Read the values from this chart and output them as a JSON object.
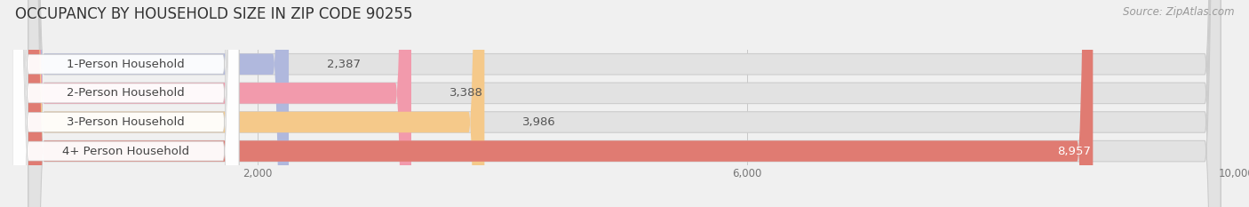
{
  "title": "OCCUPANCY BY HOUSEHOLD SIZE IN ZIP CODE 90255",
  "source": "Source: ZipAtlas.com",
  "categories": [
    "1-Person Household",
    "2-Person Household",
    "3-Person Household",
    "4+ Person Household"
  ],
  "values": [
    2387,
    3388,
    3986,
    8957
  ],
  "bar_colors": [
    "#b0b8dd",
    "#f29aac",
    "#f5c98a",
    "#e07b72"
  ],
  "value_label_colors": [
    "#555555",
    "#555555",
    "#555555",
    "#ffffff"
  ],
  "xlim": [
    0,
    10000
  ],
  "xticks": [
    2000,
    6000,
    10000
  ],
  "background_color": "#f0f0f0",
  "bar_background_color": "#e2e2e2",
  "title_fontsize": 12,
  "source_fontsize": 8.5,
  "bar_label_fontsize": 9.5,
  "value_fontsize": 9.5,
  "figsize": [
    14.06,
    2.33
  ],
  "dpi": 100
}
